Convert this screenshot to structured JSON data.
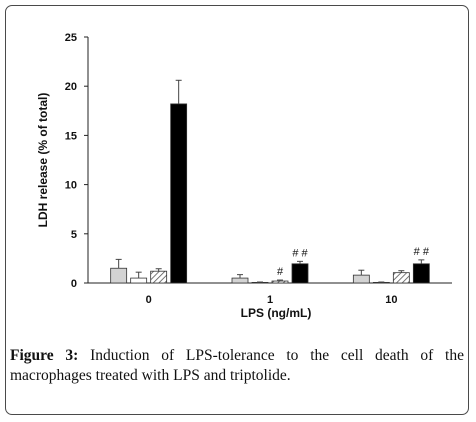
{
  "chart_data": {
    "type": "bar",
    "ylabel": "LDH release (% of total)",
    "xlabel": "LPS (ng/mL)",
    "ylim": [
      0,
      25
    ],
    "yticks": [
      0,
      5,
      10,
      15,
      20,
      25
    ],
    "categories": [
      "0",
      "1",
      "10"
    ],
    "series": [
      {
        "fill": "#d3d3d3",
        "pattern": "solid",
        "values": [
          1.5,
          0.5,
          0.8
        ],
        "errors": [
          0.9,
          0.35,
          0.5
        ],
        "annotations": [
          "",
          "",
          ""
        ]
      },
      {
        "fill": "#ffffff",
        "pattern": "solid",
        "values": [
          0.5,
          0.05,
          0.05
        ],
        "errors": [
          0.6,
          0.05,
          0.05
        ],
        "annotations": [
          "",
          "",
          ""
        ]
      },
      {
        "fill": "#ffffff",
        "pattern": "hatch",
        "values": [
          1.2,
          0.2,
          1.05
        ],
        "errors": [
          0.25,
          0.1,
          0.2
        ],
        "annotations": [
          "",
          "#",
          ""
        ]
      },
      {
        "fill": "#000000",
        "pattern": "solid",
        "values": [
          18.2,
          1.95,
          1.95
        ],
        "errors": [
          2.4,
          0.25,
          0.4
        ],
        "annotations": [
          "",
          "# #",
          "# #"
        ]
      }
    ],
    "grid": false
  },
  "caption": {
    "label": "Figure 3:",
    "text": " Induction of LPS-tolerance to the cell death of the macrophages treated with LPS and triptolide."
  }
}
